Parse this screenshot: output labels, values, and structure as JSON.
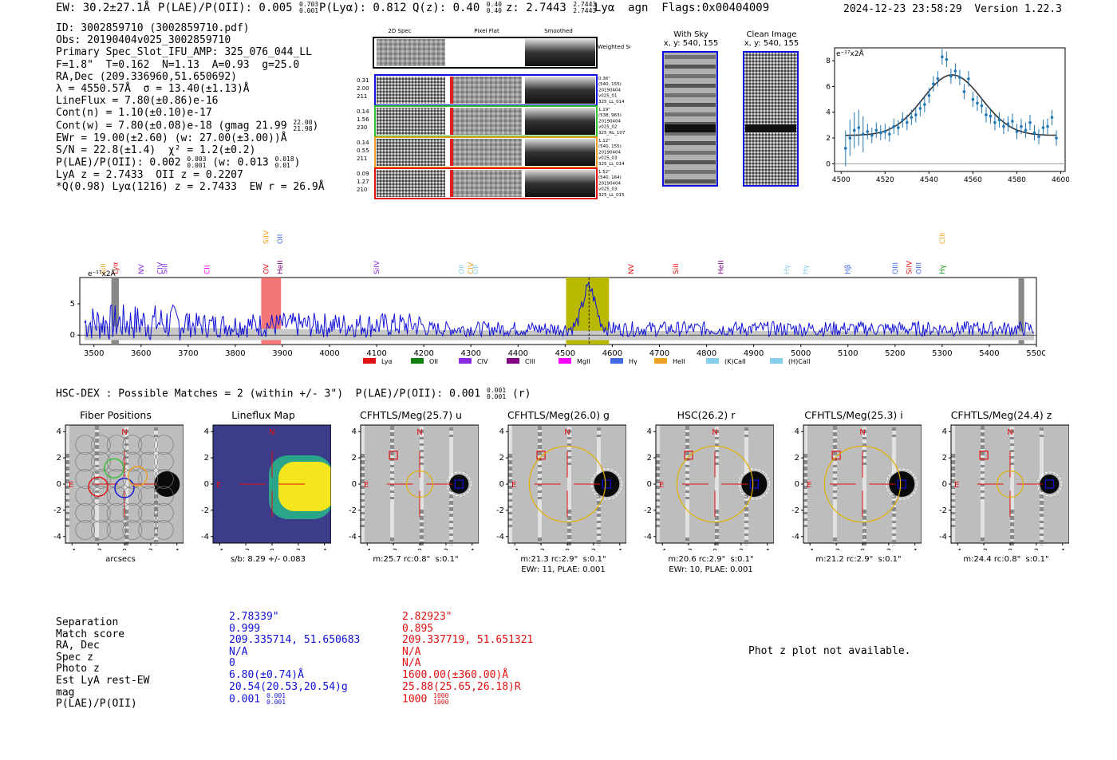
{
  "header": {
    "ew": "EW: 30.2±27.1Å",
    "plae": "P(LAE)/P(OII): 0.005",
    "plae_hi": "0.703",
    "plae_lo": "0.001",
    "plya": "P(Lyα): 0.812",
    "qz": "Q(z): 0.40",
    "qz_hi": "0.40",
    "qz_lo": "0.40",
    "z": "z: 2.7443",
    "z_hi": "2.7443",
    "z_lo": "2.7443",
    "line": "Lyα  agn  Flags:0x00404009",
    "timestamp": "2024-12-23 23:58:29  Version 1.22.3"
  },
  "info": {
    "lines": [
      "ID: 3002859710 (3002859710.pdf)",
      "Obs: 20190404v025_3002859710",
      "Primary Spec_Slot_IFU_AMP: 325_076_044_LL",
      "F=1.8\"  T=0.162  N=1.13  A=0.93  g=25.0",
      "RA,Dec (209.336960,51.650692)",
      "λ = 4550.57Å  σ = 13.40(±1.13)Å",
      "LineFlux = 7.80(±0.86)e-16",
      "Cont(n) = 1.10(±0.10)e-17"
    ],
    "contw": "Cont(w) = 7.80(±0.08)e-18 (gmag 21.99",
    "contw_hi": "22.00",
    "contw_lo": "21.98",
    "ewr": "EWr = 19.00(±2.60) (w: 27.00(±3.00))Å",
    "sn": "S/N = 22.8(±1.4)  χ² = 1.2(±0.2)",
    "plae": "P(LAE)/P(OII): 0.002",
    "plae_hi": "0.003",
    "plae_lo": "0.001",
    "plae_w": "(w: 0.013",
    "plae_w_hi": "0.018",
    "plae_w_lo": "0.01",
    "lyaz": "LyA z = 2.7433  OII z = 0.2207",
    "q": "*Q(0.98) Lyα(1216) z = 2.7433  EW r = 26.9Å"
  },
  "cutouts": {
    "col_titles": [
      "2D Spec",
      "Pixel Flat",
      "Smoothed"
    ],
    "weighted_sum": "Weighted Sum",
    "rows": [
      {
        "left": [
          "0.31",
          "2.00",
          "211"
        ],
        "right": [
          "0.36\"",
          "(540, 155)",
          "20190404",
          "v025_01",
          "325_LL_014"
        ],
        "color": "#1010d8"
      },
      {
        "left": [
          "0.14",
          "1.56",
          "230"
        ],
        "right": [
          "1.19\"",
          "(538, 963)",
          "20190404",
          "v025_02",
          "325_RL_107"
        ],
        "color": "#30c030"
      },
      {
        "left": [
          "0.14",
          "0.55",
          "211"
        ],
        "right": [
          "1.12\"",
          "(540, 155)",
          "20190404",
          "v025_03",
          "325_LL_014"
        ],
        "color": "#f0a020"
      },
      {
        "left": [
          "0.09",
          "1.27",
          "210"
        ],
        "right": [
          "1.52\"",
          "(540, 164)",
          "20190404",
          "v025_03",
          "325_LL_015"
        ],
        "color": "#e01010"
      }
    ],
    "with_sky_title": "With Sky",
    "with_sky_sub": "x, y: 540, 155",
    "clean_title": "Clean Image",
    "clean_sub": "x, y: 540, 155"
  },
  "zoom_plot": {
    "unit": "e⁻¹⁷x2Å",
    "x_ticks": [
      "4500",
      "4520",
      "4540",
      "4560",
      "4580",
      "4600"
    ],
    "y_ticks": [
      "0",
      "2",
      "4",
      "6",
      "8"
    ],
    "xlim": [
      4497,
      4602
    ],
    "ylim": [
      -0.6,
      9.0
    ],
    "points_x": [
      4502,
      4504,
      4506,
      4508,
      4510,
      4512,
      4514,
      4516,
      4518,
      4520,
      4522,
      4524,
      4526,
      4528,
      4530,
      4532,
      4534,
      4536,
      4538,
      4540,
      4542,
      4544,
      4546,
      4548,
      4550,
      4552,
      4554,
      4556,
      4558,
      4560,
      4562,
      4564,
      4566,
      4568,
      4570,
      4572,
      4574,
      4576,
      4578,
      4580,
      4582,
      4584,
      4586,
      4588,
      4590,
      4592,
      4594,
      4596,
      4598
    ],
    "points_y": [
      1.2,
      2.0,
      2.6,
      2.8,
      2.3,
      2.5,
      2.2,
      2.6,
      2.4,
      2.5,
      2.3,
      2.9,
      2.8,
      3.4,
      3.2,
      3.6,
      3.8,
      4.3,
      4.6,
      5.3,
      6.2,
      6.6,
      8.3,
      8.1,
      6.8,
      7.2,
      6.7,
      5.6,
      6.6,
      5.0,
      4.7,
      4.5,
      3.8,
      3.7,
      3.2,
      3.4,
      2.9,
      3.1,
      3.3,
      2.5,
      2.9,
      2.6,
      3.2,
      2.4,
      2.1,
      2.8,
      2.9,
      3.6,
      2.0
    ]
  },
  "spectrum": {
    "unit": "e⁻¹⁷x2Å",
    "x_ticks": [
      "3500",
      "3600",
      "3700",
      "3800",
      "3900",
      "4000",
      "4100",
      "4200",
      "4300",
      "4400",
      "4500",
      "4600",
      "4700",
      "4800",
      "4900",
      "5000",
      "5100",
      "5200",
      "5300",
      "5400",
      "5500"
    ],
    "y_ticks": [
      "0",
      "5"
    ],
    "xlim": [
      3470,
      5500
    ],
    "ylim": [
      -1.5,
      9.2
    ],
    "lines": [
      {
        "label": "SiII",
        "wl": 3520,
        "color": "#f0a020",
        "row": 0
      },
      {
        "label": "Lyα",
        "wl": 3545,
        "color": "#e01010",
        "row": 0
      },
      {
        "label": "NV",
        "wl": 3600,
        "color": "#8a2be2",
        "row": 0
      },
      {
        "label": "CIV",
        "wl": 3640,
        "color": "#8a2be2",
        "row": 0
      },
      {
        "label": "SiII",
        "wl": 3650,
        "color": "#8a2be2",
        "row": 0
      },
      {
        "label": "CII",
        "wl": 3740,
        "color": "#ff00ff",
        "row": 0
      },
      {
        "label": "OV",
        "wl": 3865,
        "color": "#e01010",
        "row": 0
      },
      {
        "label": "SiIV",
        "wl": 3865,
        "color": "#f0a020",
        "row": 1
      },
      {
        "label": "HeII",
        "wl": 3895,
        "color": "#800080",
        "row": 0
      },
      {
        "label": "OII",
        "wl": 3895,
        "color": "#4169e1",
        "row": 1
      },
      {
        "label": "SiIV",
        "wl": 4100,
        "color": "#8a2be2",
        "row": 0
      },
      {
        "label": "OII",
        "wl": 4280,
        "color": "#87ceeb",
        "row": 0
      },
      {
        "label": "CIV",
        "wl": 4300,
        "color": "#f0a020",
        "row": 0
      },
      {
        "label": "OII",
        "wl": 4310,
        "color": "#87ceeb",
        "row": 0
      },
      {
        "label": "NV",
        "wl": 4640,
        "color": "#e01010",
        "row": 0
      },
      {
        "label": "SiII",
        "wl": 4735,
        "color": "#e01010",
        "row": 0
      },
      {
        "label": "HeII",
        "wl": 4830,
        "color": "#800080",
        "row": 0
      },
      {
        "label": "Hγ",
        "wl": 4970,
        "color": "#87ceeb",
        "row": 0
      },
      {
        "label": "Hγ",
        "wl": 5010,
        "color": "#87ceeb",
        "row": 0
      },
      {
        "label": "Hβ",
        "wl": 5100,
        "color": "#4169e1",
        "row": 0
      },
      {
        "label": "OIII",
        "wl": 5200,
        "color": "#4169e1",
        "row": 0
      },
      {
        "label": "SiIV",
        "wl": 5230,
        "color": "#e01010",
        "row": 0
      },
      {
        "label": "OIII",
        "wl": 5250,
        "color": "#4169e1",
        "row": 0
      },
      {
        "label": "CIII",
        "wl": 5300,
        "color": "#f0a020",
        "row": 1
      },
      {
        "label": "Hγ",
        "wl": 5300,
        "color": "#1a9a1a",
        "row": 0
      }
    ],
    "legend": [
      {
        "label": "Lyα",
        "color": "#e01010"
      },
      {
        "label": "OII",
        "color": "#108010"
      },
      {
        "label": "CIV",
        "color": "#8a2be2"
      },
      {
        "label": "CIII",
        "color": "#800080"
      },
      {
        "label": "MgII",
        "color": "#ff00ff"
      },
      {
        "label": "Hγ",
        "color": "#4169e1"
      },
      {
        "label": "HeII",
        "color": "#f0a020"
      },
      {
        "label": "(K)CaII",
        "color": "#87ceeb"
      },
      {
        "label": "(H)CaII",
        "color": "#87ceeb"
      }
    ]
  },
  "hsc": {
    "title": "HSC-DEX : Possible Matches = 2 (within +/- 3\")  P(LAE)/P(OII): 0.001",
    "plae_hi": "0.001",
    "plae_lo": "0.001",
    "suffix": "(r)",
    "panels": [
      {
        "title": "Fiber Positions",
        "caption1": "arcsecs",
        "caption2": ""
      },
      {
        "title": "Lineflux Map",
        "caption1": "s/b: 8.29 +/- 0.083",
        "caption2": ""
      },
      {
        "title": "CFHTLS/Meg(25.7) u",
        "caption1": "m:25.7 rc:0.8\"  s:0.1\"",
        "caption2": ""
      },
      {
        "title": "CFHTLS/Meg(26.0) g",
        "caption1": "m:21.3 rc:2.9\"  s:0.1\"",
        "caption2": "EWr: 11, PLAE: 0.001"
      },
      {
        "title": "HSC(26.2) r",
        "caption1": "m:20.6 rc:2.9\"  s:0.1\"",
        "caption2": "EWr: 10, PLAE: 0.001"
      },
      {
        "title": "CFHTLS/Meg(25.3) i",
        "caption1": "m:21.2 rc:2.9\"  s:0.1\"",
        "caption2": ""
      },
      {
        "title": "CFHTLS/Meg(24.4) z",
        "caption1": "m:24.4 rc:0.8\"  s:0.1\"",
        "caption2": ""
      }
    ],
    "axis_ticks": [
      "-4",
      "-2",
      "0",
      "2",
      "4"
    ],
    "n_label": "N",
    "e_label": "E"
  },
  "table": {
    "labels": [
      "Separation",
      "Match score",
      "RA, Dec",
      "Spec z",
      "Photo z",
      "Est LyA rest-EW",
      "mag",
      "P(LAE)/P(OII)"
    ],
    "col1": [
      "2.78339\"",
      "0.999",
      "209.335714, 51.650683",
      "N/A",
      "0",
      "6.80(±0.74)Å",
      "20.54(20.53,20.54)g",
      "0.001"
    ],
    "col1_plae_hi": "0.001",
    "col1_plae_lo": "0.001",
    "col2": [
      "2.82923\"",
      "0.895",
      "209.337719, 51.651321",
      "N/A",
      "N/A",
      "1600.00(±360.00)Å",
      "25.88(25.65,26.18)R",
      "1000"
    ],
    "col2_plae_hi": "1000",
    "col2_plae_lo": "1000",
    "photz_note": "Phot z plot not available."
  }
}
